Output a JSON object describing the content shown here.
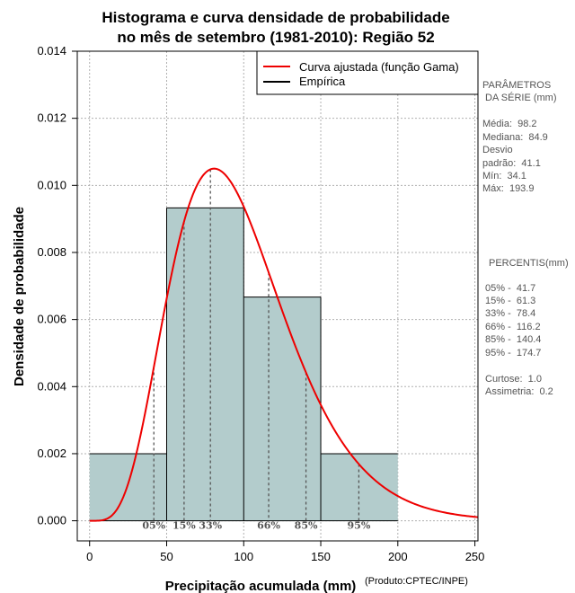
{
  "chart_data": {
    "type": "bar",
    "title_lines": [
      "Histograma e curva densidade de probabilidade",
      "no mês de setembro (1981-2010): Região 52"
    ],
    "xlabel": "Precipitação acumulada (mm)",
    "ylabel": "Densidade de probabilidade",
    "credit": "(Produto:CPTEC/INPE)",
    "xlim": [
      -8,
      252
    ],
    "ylim": [
      -0.0006,
      0.014
    ],
    "x_ticks": [
      0,
      50,
      100,
      150,
      200,
      250
    ],
    "x_tick_labels": [
      "0",
      "50",
      "100",
      "150",
      "200",
      "250"
    ],
    "y_ticks": [
      0.0,
      0.002,
      0.004,
      0.006,
      0.008,
      0.01,
      0.012,
      0.014
    ],
    "y_tick_labels": [
      "0.000",
      "0.002",
      "0.004",
      "0.006",
      "0.008",
      "0.010",
      "0.012",
      "0.014"
    ],
    "grid": true,
    "histogram": {
      "bin_edges": [
        0,
        50,
        100,
        150,
        200
      ],
      "densities": [
        0.002,
        0.00933,
        0.00667,
        0.002
      ],
      "fill": "#b3cccc"
    },
    "gamma_curve": {
      "shape": 5.67,
      "scale": 17.3,
      "peak_density": 0.0105,
      "x_range": [
        0,
        252
      ],
      "color": "#ee0000"
    },
    "percentile_lines": [
      {
        "label": "05%",
        "value": 41.7
      },
      {
        "label": "15%",
        "value": 61.3
      },
      {
        "label": "33%",
        "value": 78.4
      },
      {
        "label": "66%",
        "value": 116.2
      },
      {
        "label": "85%",
        "value": 140.4
      },
      {
        "label": "95%",
        "value": 174.7
      }
    ],
    "legend": {
      "placement": "top-right",
      "entries": [
        {
          "label": "Curva ajustada (função Gama)",
          "color": "#ee0000"
        },
        {
          "label": "Empírica",
          "color": "#000000"
        }
      ]
    },
    "stats_panel": {
      "header_lines": [
        "PARÂMETROS",
        " DA SÉRIE (mm)"
      ],
      "lines": [
        "Média:  98.2",
        "Mediana:  84.9",
        "Desvio",
        "padrão:  41.1",
        "Mín:  34.1",
        "Máx:  193.9"
      ]
    },
    "percentis_panel": {
      "header": "PERCENTIS(mm)",
      "lines": [
        "05% -  41.7",
        "15% -  61.3",
        "33% -  78.4",
        "66% -  116.2",
        "85% -  140.4",
        "95% -  174.7"
      ],
      "extra_lines": [
        "Curtose:  1.0",
        "Assimetria:  0.2"
      ]
    }
  }
}
